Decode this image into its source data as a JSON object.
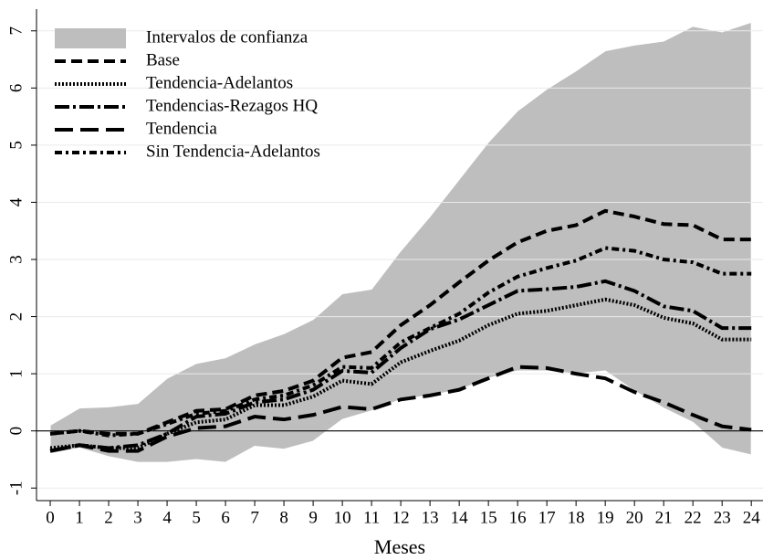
{
  "chart_data": {
    "type": "line",
    "x_label": "Meses",
    "x": [
      0,
      1,
      2,
      3,
      4,
      5,
      6,
      7,
      8,
      9,
      10,
      11,
      12,
      13,
      14,
      15,
      16,
      17,
      18,
      19,
      20,
      21,
      22,
      23,
      24
    ],
    "xlim": [
      -0.47,
      24.4
    ],
    "xticks": [
      0,
      1,
      2,
      3,
      4,
      5,
      6,
      7,
      8,
      9,
      10,
      11,
      12,
      13,
      14,
      15,
      16,
      17,
      18,
      19,
      20,
      21,
      22,
      23,
      24
    ],
    "ylim": [
      -1.22,
      7.38
    ],
    "yticks": [
      -1,
      0,
      1,
      2,
      3,
      4,
      5,
      6,
      7
    ],
    "grid": true,
    "reference_line": 0,
    "legend": "top-left",
    "band": {
      "name": "Intervalos de confianza",
      "color": "#bebebe",
      "upper": [
        0.1,
        0.4,
        0.42,
        0.48,
        0.92,
        1.18,
        1.28,
        1.52,
        1.7,
        1.95,
        2.4,
        2.48,
        3.15,
        3.75,
        4.4,
        5.05,
        5.6,
        5.98,
        6.3,
        6.65,
        6.75,
        6.82,
        7.08,
        6.98,
        7.15
      ],
      "lower": [
        -0.4,
        -0.3,
        -0.45,
        -0.55,
        -0.55,
        -0.5,
        -0.55,
        -0.27,
        -0.32,
        -0.18,
        0.2,
        0.35,
        0.55,
        0.62,
        0.72,
        0.92,
        1.05,
        1.05,
        1.0,
        1.05,
        0.7,
        0.4,
        0.15,
        -0.3,
        -0.42
      ]
    },
    "series": [
      {
        "name": "Base",
        "color": "#000000",
        "dash": "12,6",
        "values": [
          -0.05,
          0,
          -0.05,
          -0.05,
          0.15,
          0.35,
          0.38,
          0.62,
          0.7,
          0.88,
          1.28,
          1.38,
          1.85,
          2.2,
          2.6,
          2.98,
          3.3,
          3.5,
          3.6,
          3.85,
          3.75,
          3.62,
          3.6,
          3.35,
          3.35
        ]
      },
      {
        "name": "Tendencia-Adelantos",
        "color": "#000000",
        "dash": "2,2",
        "values": [
          -0.3,
          -0.25,
          -0.3,
          -0.3,
          -0.05,
          0.15,
          0.2,
          0.45,
          0.45,
          0.6,
          0.88,
          0.82,
          1.2,
          1.4,
          1.58,
          1.85,
          2.05,
          2.1,
          2.2,
          2.3,
          2.2,
          1.98,
          1.88,
          1.6,
          1.6
        ]
      },
      {
        "name": "Tendencias-Rezagos HQ",
        "color": "#000000",
        "dash": "16,4,3,4",
        "values": [
          -0.35,
          -0.25,
          -0.3,
          -0.25,
          -0.05,
          0.25,
          0.3,
          0.5,
          0.55,
          0.72,
          1.05,
          1.02,
          1.45,
          1.78,
          1.95,
          2.2,
          2.45,
          2.48,
          2.52,
          2.62,
          2.45,
          2.18,
          2.1,
          1.8,
          1.8
        ]
      },
      {
        "name": "Tendencia",
        "color": "#000000",
        "dash": "20,8",
        "values": [
          -0.35,
          -0.25,
          -0.35,
          -0.35,
          -0.1,
          0.05,
          0.08,
          0.25,
          0.2,
          0.28,
          0.42,
          0.38,
          0.55,
          0.62,
          0.72,
          0.92,
          1.12,
          1.1,
          1.0,
          0.92,
          0.68,
          0.5,
          0.28,
          0.08,
          0.02
        ]
      },
      {
        "name": "Sin Tendencia-Adelantos",
        "color": "#000000",
        "dash": "8,4,3,4",
        "values": [
          -0.05,
          0,
          -0.08,
          -0.05,
          0.12,
          0.3,
          0.35,
          0.55,
          0.62,
          0.8,
          1.12,
          1.1,
          1.55,
          1.8,
          2.05,
          2.42,
          2.7,
          2.85,
          2.98,
          3.2,
          3.15,
          3.0,
          2.95,
          2.75,
          2.75
        ]
      }
    ]
  }
}
